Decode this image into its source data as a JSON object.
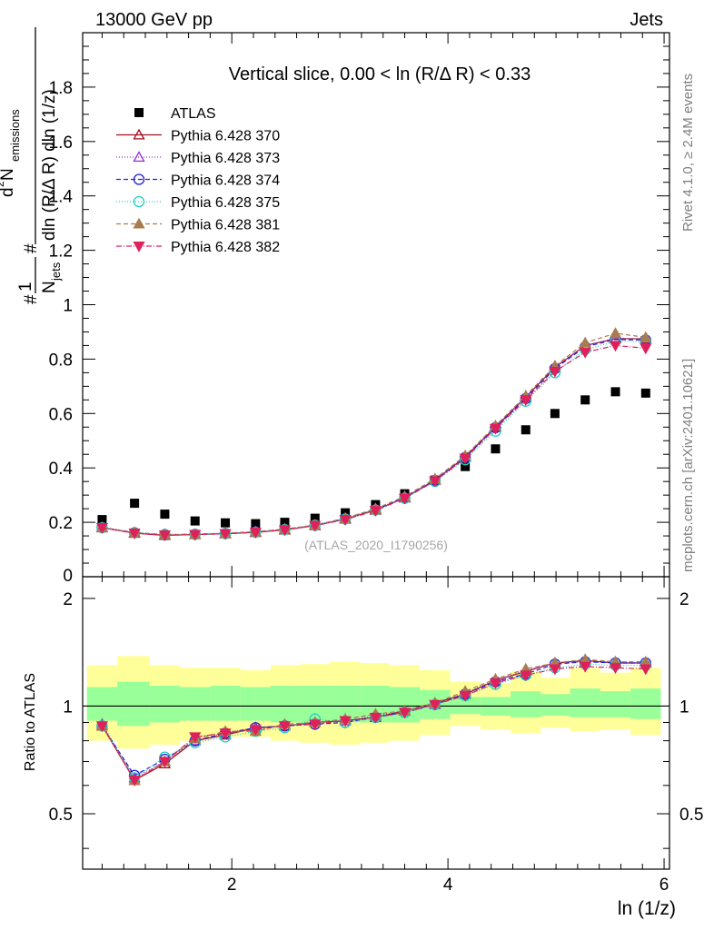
{
  "header": {
    "left": "13000 GeV pp",
    "right": "Jets"
  },
  "side_labels": {
    "rivet": "Rivet 4.1.0, ≥ 2.4M events",
    "mcplots": "mcplots.cern.ch [arXiv:2401.10621]"
  },
  "chart_data": [
    {
      "type": "scatter",
      "panel": "main",
      "title": "Vertical slice, 0.00 < ln (R/Δ R) < 0.33",
      "ylabel": "1/N_jets d² N_emissions / dln (R/Δ R) dln (1/z)",
      "ylabel_parts": {
        "frac1_num": "1",
        "frac1_den": "N",
        "frac1_den_sub": "jets",
        "d2N": "d",
        "d2N_sup": "2",
        "d2N_rest": " N",
        "d2N_sub": "emissions",
        "den": "dln (R/Δ R) dln (1/z)",
        "hash": "#"
      },
      "watermark": "(ATLAS_2020_I1790256)",
      "xlim": [
        0.62,
        6.05
      ],
      "ylim": [
        0.0,
        2.0
      ],
      "yticks": [
        0.2,
        0.4,
        0.6,
        0.8,
        1,
        1.2,
        1.4,
        1.6,
        1.8
      ],
      "ytick_labels": [
        "0.2",
        "0.4",
        "0.6",
        "0.8",
        "1",
        "1.2",
        "1.4",
        "1.6",
        "1.8"
      ],
      "x": [
        0.8,
        1.1,
        1.38,
        1.66,
        1.94,
        2.22,
        2.49,
        2.77,
        3.05,
        3.33,
        3.6,
        3.88,
        4.16,
        4.44,
        4.72,
        4.99,
        5.27,
        5.55,
        5.83
      ],
      "series": [
        {
          "name": "ATLAS",
          "marker": "square",
          "color": "#000000",
          "dash": "",
          "values": [
            0.21,
            0.27,
            0.23,
            0.205,
            0.198,
            0.195,
            0.2,
            0.215,
            0.235,
            0.265,
            0.305,
            0.355,
            0.405,
            0.47,
            0.54,
            0.6,
            0.65,
            0.68,
            0.675
          ]
        },
        {
          "name": "Pythia 6.428 370",
          "marker": "triangle-open",
          "color": "#a0101c",
          "dash": "",
          "values": [
            0.18,
            0.16,
            0.152,
            0.155,
            0.158,
            0.163,
            0.172,
            0.188,
            0.212,
            0.245,
            0.29,
            0.355,
            0.44,
            0.55,
            0.66,
            0.77,
            0.85,
            0.875,
            0.875
          ]
        },
        {
          "name": "Pythia 6.428 373",
          "marker": "triangle-open",
          "color": "#9933cc",
          "dash": "1,2",
          "values": [
            0.182,
            0.163,
            0.155,
            0.156,
            0.16,
            0.165,
            0.175,
            0.19,
            0.215,
            0.248,
            0.292,
            0.356,
            0.442,
            0.552,
            0.662,
            0.77,
            0.848,
            0.878,
            0.872
          ]
        },
        {
          "name": "Pythia 6.428 374",
          "marker": "circle-open",
          "color": "#2020d8",
          "dash": "5,3",
          "values": [
            0.181,
            0.162,
            0.154,
            0.156,
            0.159,
            0.165,
            0.174,
            0.189,
            0.213,
            0.246,
            0.29,
            0.354,
            0.438,
            0.548,
            0.655,
            0.765,
            0.845,
            0.872,
            0.87
          ]
        },
        {
          "name": "Pythia 6.428 375",
          "marker": "circle-open",
          "color": "#20d0c0",
          "dash": "1,2",
          "values": [
            0.18,
            0.162,
            0.156,
            0.155,
            0.158,
            0.163,
            0.173,
            0.19,
            0.212,
            0.245,
            0.288,
            0.35,
            0.43,
            0.535,
            0.645,
            0.75,
            0.835,
            0.865,
            0.865
          ]
        },
        {
          "name": "Pythia 6.428 381",
          "marker": "triangle",
          "color": "#a87c50",
          "dash": "5,3",
          "values": [
            0.18,
            0.162,
            0.155,
            0.156,
            0.16,
            0.165,
            0.175,
            0.19,
            0.215,
            0.25,
            0.295,
            0.36,
            0.445,
            0.555,
            0.665,
            0.775,
            0.86,
            0.895,
            0.88
          ]
        },
        {
          "name": "Pythia 6.428 382",
          "marker": "triangle-down",
          "color": "#e0205a",
          "dash": "6,2,1,2",
          "values": [
            0.18,
            0.16,
            0.153,
            0.155,
            0.158,
            0.163,
            0.172,
            0.188,
            0.21,
            0.243,
            0.288,
            0.352,
            0.435,
            0.545,
            0.65,
            0.755,
            0.825,
            0.85,
            0.84
          ]
        }
      ]
    },
    {
      "type": "scatter",
      "panel": "ratio",
      "ylabel": "Ratio to ATLAS",
      "xlabel": "ln (1/z)",
      "xlim": [
        0.62,
        6.05
      ],
      "ylim": [
        0.35,
        2.3
      ],
      "xticks": [
        2,
        4,
        6
      ],
      "xtick_labels": [
        "2",
        "4",
        "6"
      ],
      "yticks": [
        0.5,
        1,
        2
      ],
      "ytick_labels": [
        "0.5",
        "1",
        "2"
      ],
      "band_x_edges": [
        0.66,
        0.94,
        1.24,
        1.52,
        1.8,
        2.08,
        2.36,
        2.63,
        2.91,
        3.19,
        3.46,
        3.74,
        4.02,
        4.3,
        4.58,
        4.86,
        5.13,
        5.41,
        5.69,
        5.97
      ],
      "band_yellow": [
        [
          0.8,
          1.3
        ],
        [
          0.76,
          1.38
        ],
        [
          0.78,
          1.3
        ],
        [
          0.8,
          1.28
        ],
        [
          0.82,
          1.28
        ],
        [
          0.82,
          1.26
        ],
        [
          0.8,
          1.3
        ],
        [
          0.79,
          1.31
        ],
        [
          0.78,
          1.33
        ],
        [
          0.79,
          1.32
        ],
        [
          0.8,
          1.3
        ],
        [
          0.83,
          1.26
        ],
        [
          0.88,
          1.17
        ],
        [
          0.86,
          1.16
        ],
        [
          0.84,
          1.25
        ],
        [
          0.87,
          1.2
        ],
        [
          0.85,
          1.28
        ],
        [
          0.86,
          1.24
        ],
        [
          0.83,
          1.28
        ]
      ],
      "band_green": [
        [
          0.91,
          1.13
        ],
        [
          0.88,
          1.17
        ],
        [
          0.9,
          1.14
        ],
        [
          0.91,
          1.13
        ],
        [
          0.91,
          1.14
        ],
        [
          0.91,
          1.13
        ],
        [
          0.9,
          1.14
        ],
        [
          0.9,
          1.14
        ],
        [
          0.9,
          1.14
        ],
        [
          0.9,
          1.14
        ],
        [
          0.9,
          1.13
        ],
        [
          0.92,
          1.11
        ],
        [
          0.95,
          1.06
        ],
        [
          0.94,
          1.06
        ],
        [
          0.93,
          1.1
        ],
        [
          0.94,
          1.08
        ],
        [
          0.93,
          1.12
        ],
        [
          0.93,
          1.1
        ],
        [
          0.92,
          1.12
        ]
      ],
      "x": [
        0.8,
        1.1,
        1.38,
        1.66,
        1.94,
        2.22,
        2.49,
        2.77,
        3.05,
        3.33,
        3.6,
        3.88,
        4.16,
        4.44,
        4.72,
        4.99,
        5.27,
        5.55,
        5.83
      ],
      "series": [
        {
          "name": "Pythia 6.428 370",
          "marker": "triangle-open",
          "color": "#a0101c",
          "dash": "",
          "values": [
            0.88,
            0.62,
            0.69,
            0.8,
            0.83,
            0.87,
            0.88,
            0.9,
            0.91,
            0.93,
            0.97,
            1.02,
            1.08,
            1.18,
            1.25,
            1.32,
            1.34,
            1.32,
            1.32
          ]
        },
        {
          "name": "Pythia 6.428 373",
          "marker": "triangle-open",
          "color": "#9933cc",
          "dash": "1,2",
          "values": [
            0.89,
            0.63,
            0.7,
            0.8,
            0.84,
            0.87,
            0.88,
            0.9,
            0.91,
            0.94,
            0.97,
            1.01,
            1.09,
            1.18,
            1.26,
            1.32,
            1.33,
            1.33,
            1.32
          ]
        },
        {
          "name": "Pythia 6.428 374",
          "marker": "circle-open",
          "color": "#2020d8",
          "dash": "5,3",
          "values": [
            0.88,
            0.64,
            0.71,
            0.8,
            0.84,
            0.87,
            0.88,
            0.89,
            0.9,
            0.93,
            0.96,
            1.01,
            1.08,
            1.17,
            1.23,
            1.31,
            1.33,
            1.32,
            1.32
          ]
        },
        {
          "name": "Pythia 6.428 375",
          "marker": "circle-open",
          "color": "#20d0c0",
          "dash": "1,2",
          "values": [
            0.88,
            0.63,
            0.72,
            0.79,
            0.82,
            0.85,
            0.87,
            0.92,
            0.9,
            0.93,
            0.96,
            1.01,
            1.07,
            1.15,
            1.22,
            1.28,
            1.31,
            1.3,
            1.3
          ]
        },
        {
          "name": "Pythia 6.428 381",
          "marker": "triangle",
          "color": "#a87c50",
          "dash": "5,3",
          "values": [
            0.88,
            0.62,
            0.7,
            0.81,
            0.85,
            0.85,
            0.89,
            0.9,
            0.92,
            0.95,
            0.97,
            1.02,
            1.1,
            1.19,
            1.27,
            1.32,
            1.35,
            1.33,
            1.33
          ]
        },
        {
          "name": "Pythia 6.428 382",
          "marker": "triangle-down",
          "color": "#e0205a",
          "dash": "6,2,1,2",
          "values": [
            0.88,
            0.62,
            0.7,
            0.82,
            0.84,
            0.86,
            0.88,
            0.89,
            0.91,
            0.93,
            0.96,
            1.01,
            1.07,
            1.16,
            1.22,
            1.27,
            1.29,
            1.28,
            1.27
          ]
        }
      ]
    }
  ]
}
